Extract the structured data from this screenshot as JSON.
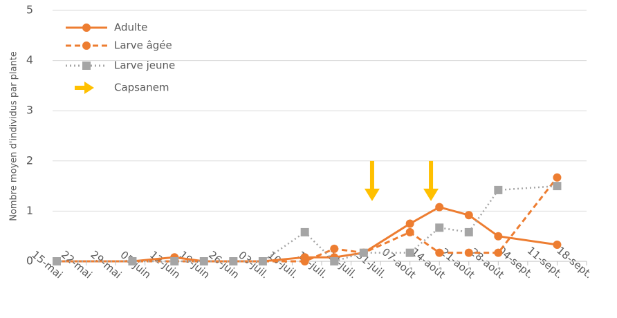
{
  "chart_data": {
    "type": "line",
    "ylabel": "Nombre moyen d'individus par plante",
    "xlim": [
      "15-mai",
      "18-sept."
    ],
    "xticks": [
      "15-mai",
      "22-mai",
      "29-mai",
      "05-juin",
      "12-juin",
      "19-juin",
      "26-juin",
      "03-juil.",
      "10-juil.",
      "17-juil.",
      "24-juil.",
      "31-juil.",
      "07-août",
      "14-août",
      "21-août",
      "28-août",
      "04-sept.",
      "11-sept.",
      "18-sept."
    ],
    "ylim": [
      0,
      5
    ],
    "yticks": [
      0,
      1,
      2,
      3,
      4,
      5
    ],
    "grid": true,
    "legend": "upper left",
    "x": [
      "15-mai",
      "02-juin",
      "12-juin",
      "19-juin",
      "26-juin",
      "03-juil.",
      "13-juil.",
      "20-juil.",
      "27-juil.",
      "07-août",
      "14-août",
      "21-août",
      "28-août",
      "11-sept."
    ],
    "series": [
      {
        "name": "Adulte",
        "color": "#ed7d31",
        "style": "solid",
        "marker": "circle",
        "values": [
          0,
          0,
          0.08,
          0,
          0,
          0,
          0.08,
          0.08,
          0.17,
          0.75,
          1.08,
          0.92,
          0.5,
          0.33
        ]
      },
      {
        "name": "Larve âgée",
        "color": "#ed7d31",
        "style": "dashed",
        "marker": "circle",
        "values": [
          0,
          0,
          0,
          0,
          0,
          0,
          0,
          0.25,
          0.17,
          0.58,
          0.17,
          0.17,
          0.17,
          1.67
        ]
      },
      {
        "name": "Larve jeune",
        "color": "#a5a5a5",
        "style": "dotted",
        "marker": "square",
        "values": [
          0,
          0,
          0,
          0,
          0,
          0,
          0.58,
          0,
          0.17,
          0.17,
          0.67,
          0.58,
          1.42,
          1.5
        ]
      },
      {
        "name": "Capsanem",
        "color": "#ffc000",
        "style": "arrow",
        "x": [
          "29-juil.",
          "12-août"
        ],
        "values": [
          1.2,
          1.2
        ]
      }
    ]
  }
}
